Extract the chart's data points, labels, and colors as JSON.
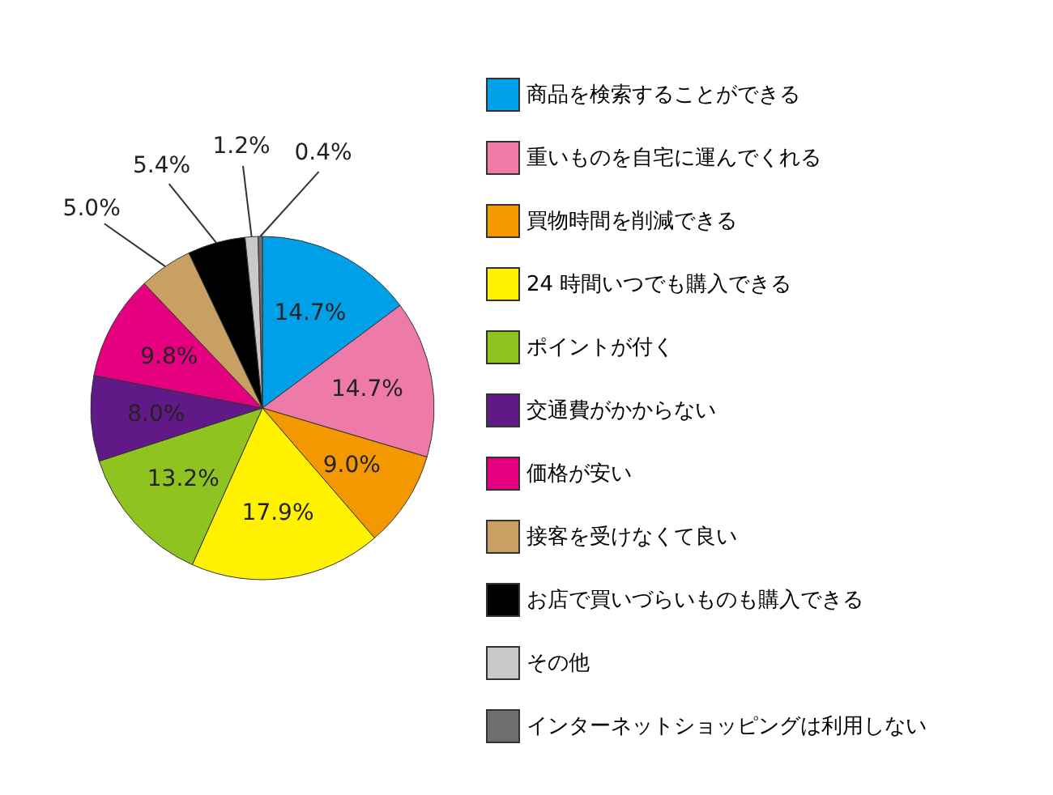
{
  "chart_data": {
    "type": "pie",
    "categories": [
      "商品を検索することができる",
      "重いものを自宅に運んでくれる",
      "買物時間を削減できる",
      "24 時間いつでも購入できる",
      "ポイントが付く",
      "交通費がかからない",
      "価格が安い",
      "接客を受けなくて良い",
      "お店で買いづらいものも購入できる",
      "その他",
      "インターネットショッピングは利用しない"
    ],
    "values": [
      14.7,
      14.7,
      9.0,
      17.9,
      13.2,
      8.0,
      9.8,
      5.0,
      5.4,
      1.2,
      0.4
    ],
    "value_labels": [
      "14.7%",
      "14.7%",
      "9.0%",
      "17.9%",
      "13.2%",
      "8.0%",
      "9.8%",
      "5.0%",
      "5.4%",
      "1.2%",
      "0.4%"
    ],
    "colors": [
      "#00a0e9",
      "#ee7aa8",
      "#f39800",
      "#fff100",
      "#8fc31f",
      "#601986",
      "#e4007f",
      "#c9a063",
      "#000000",
      "#c9c9c9",
      "#6e6e6e"
    ],
    "legend": "right"
  }
}
